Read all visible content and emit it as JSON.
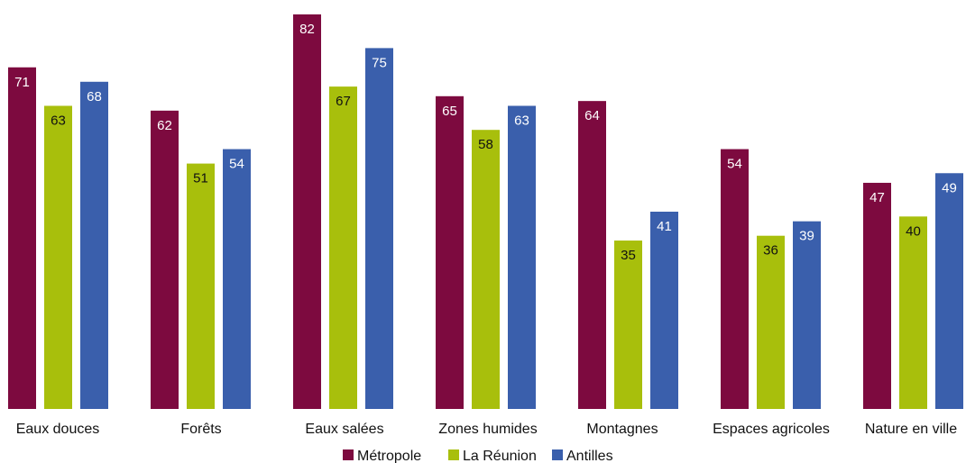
{
  "chart_data": {
    "type": "bar",
    "title": "",
    "xlabel": "",
    "ylabel": "",
    "ylim": [
      0,
      82
    ],
    "grid": false,
    "legend_position": "bottom-center",
    "categories": [
      "Eaux douces",
      "Forêts",
      "Eaux salées",
      "Zones humides",
      "Montagnes",
      "Espaces agricoles",
      "Nature en ville"
    ],
    "series": [
      {
        "name": "Métropole",
        "color": "#7d0a3f",
        "label_color": "#ffffff",
        "values": [
          71,
          62,
          82,
          65,
          64,
          54,
          47
        ]
      },
      {
        "name": "La Réunion",
        "color": "#a8bf0c",
        "label_color": "#111111",
        "values": [
          63,
          51,
          67,
          58,
          35,
          36,
          40
        ]
      },
      {
        "name": "Antilles",
        "color": "#3a5fac",
        "label_color": "#ffffff",
        "values": [
          68,
          54,
          75,
          63,
          41,
          39,
          49
        ]
      }
    ]
  }
}
